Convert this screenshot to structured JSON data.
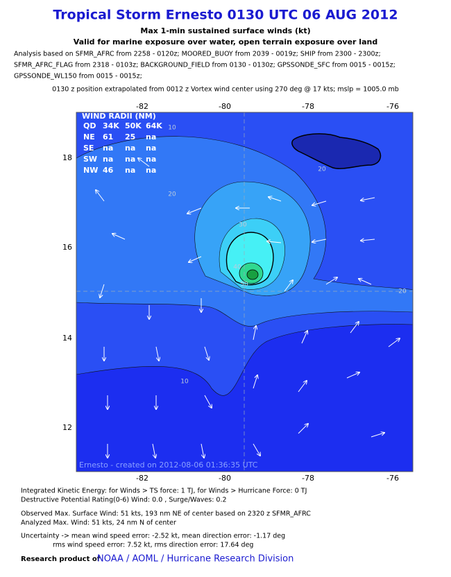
{
  "header": {
    "title": "Tropical Storm Ernesto 0130 UTC 06 AUG 2012",
    "subtitle": [
      "Max 1-min sustained surface winds (kt)",
      "Valid for marine exposure over water, open terrain exposure over land"
    ],
    "analysis": [
      "Analysis based on SFMR_AFRC from 2258 - 0120z; MOORED_BUOY from 2039 - 0019z; SHIP from 2300 - 2300z;",
      "SFMR_AFRC_FLAG from 2318 - 0103z; BACKGROUND_FIELD from 0130 - 0130z; GPSSONDE_SFC from 0015 - 0015z;",
      "GPSSONDE_WL150 from 0015 - 0015z;"
    ],
    "position": "0130 z position extrapolated from 0012 z Vortex wind center using 270 deg @ 17 kts; mslp = 1005.0 mb"
  },
  "map": {
    "lon_ticks": [
      "-82",
      "-80",
      "-78",
      "-76"
    ],
    "lat_ticks": [
      "18",
      "16",
      "14",
      "12"
    ],
    "contour_labels": [
      "10",
      "20",
      "20",
      "30",
      "40",
      "50",
      "20",
      "10"
    ],
    "wind_radii": {
      "title": "WIND RADII (NM)",
      "header": [
        "QD",
        "34K",
        "50K",
        "64K"
      ],
      "rows": [
        [
          "NE",
          "61",
          "25",
          "na"
        ],
        [
          "SE",
          "na",
          "na",
          "na"
        ],
        [
          "SW",
          "na",
          "na",
          "na"
        ],
        [
          "NW",
          "46",
          "na",
          "na"
        ]
      ]
    },
    "credit": "Ernesto - created on 2012-08-06 01:36:35 UTC"
  },
  "footer": {
    "lines": [
      "Integrated Kinetic Energy: for Winds > TS force: 1 TJ, for Winds > Hurricane Force: 0 TJ",
      "Destructive Potential Rating(0-6)  Wind: 0.0 , Surge/Waves: 0.2",
      "Observed Max. Surface Wind: 51 kts, 193 nm NE of center based on 2320 z SFMR_AFRC",
      "Analyzed Max. Wind: 51 kts, 24 nm  N of center",
      "Uncertainty -> mean wind speed error:  -2.52 kt, mean direction error:  -1.17 deg",
      "rms wind speed error: 7.52 kt, rms direction error: 17.64 deg"
    ],
    "research": "Research product of",
    "org": "NOAA / AOML / Hurricane Research Division"
  }
}
